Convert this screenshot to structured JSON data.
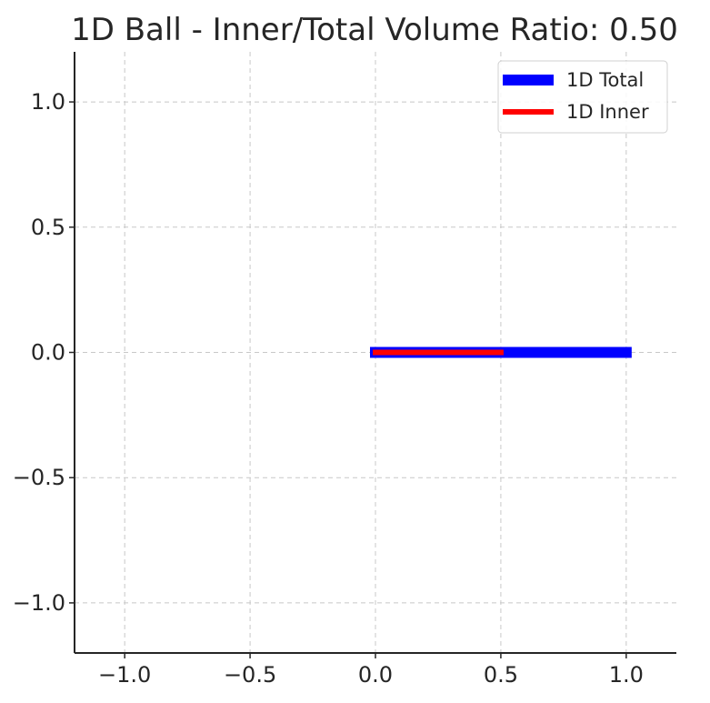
{
  "chart_data": {
    "type": "line",
    "title": "1D Ball - Inner/Total Volume Ratio: 0.50",
    "xlabel": "",
    "ylabel": "",
    "xlim": [
      -1.2,
      1.2
    ],
    "ylim": [
      -1.2,
      1.2
    ],
    "xticks": [
      -1.0,
      -0.5,
      0.0,
      0.5,
      1.0
    ],
    "yticks": [
      -1.0,
      -0.5,
      0.0,
      0.5,
      1.0
    ],
    "xtick_labels": [
      "−1.0",
      "−0.5",
      "0.0",
      "0.5",
      "1.0"
    ],
    "ytick_labels": [
      "−1.0",
      "−0.5",
      "0.0",
      "0.5",
      "1.0"
    ],
    "grid": true,
    "legend_position": "top-right",
    "series": [
      {
        "name": "1D Total",
        "color": "#0000ff",
        "x": [
          0.0,
          1.0
        ],
        "y": [
          0.0,
          0.0
        ]
      },
      {
        "name": "1D Inner",
        "color": "#ff0000",
        "x": [
          0.0,
          0.5
        ],
        "y": [
          0.0,
          0.0
        ]
      }
    ]
  }
}
